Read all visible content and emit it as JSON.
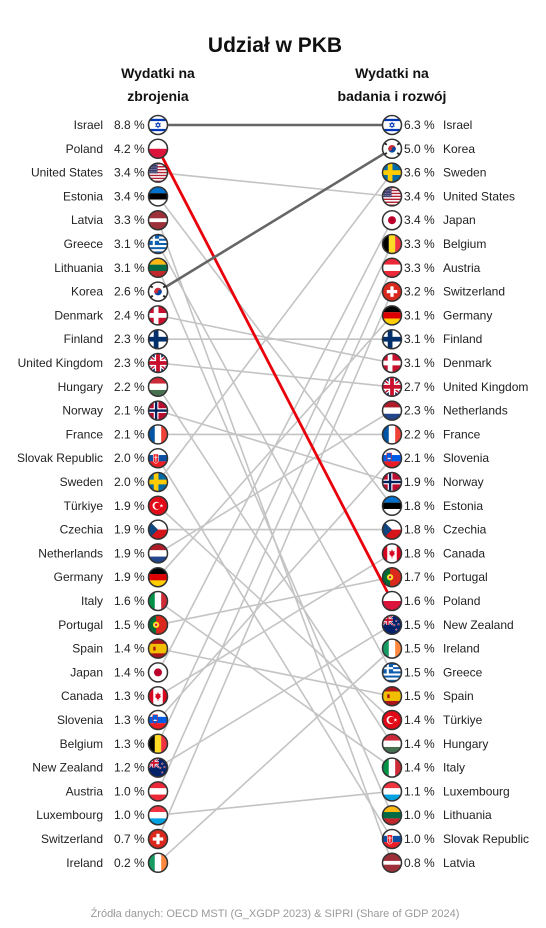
{
  "chart_data": {
    "type": "slope",
    "title": "Udział w PKB",
    "left_header": [
      "Wydatki na",
      "zbrojenia"
    ],
    "right_header": [
      "Wydatki na",
      "badania i rozwój"
    ],
    "unit": "%",
    "left": [
      {
        "country": "Israel",
        "value": 8.8,
        "label": "8.8 %"
      },
      {
        "country": "Poland",
        "value": 4.2,
        "label": "4.2 %"
      },
      {
        "country": "United States",
        "value": 3.4,
        "label": "3.4 %"
      },
      {
        "country": "Estonia",
        "value": 3.4,
        "label": "3.4 %"
      },
      {
        "country": "Latvia",
        "value": 3.3,
        "label": "3.3 %"
      },
      {
        "country": "Greece",
        "value": 3.1,
        "label": "3.1 %"
      },
      {
        "country": "Lithuania",
        "value": 3.1,
        "label": "3.1 %"
      },
      {
        "country": "Korea",
        "value": 2.6,
        "label": "2.6 %"
      },
      {
        "country": "Denmark",
        "value": 2.4,
        "label": "2.4 %"
      },
      {
        "country": "Finland",
        "value": 2.3,
        "label": "2.3 %"
      },
      {
        "country": "United Kingdom",
        "value": 2.3,
        "label": "2.3 %"
      },
      {
        "country": "Hungary",
        "value": 2.2,
        "label": "2.2 %"
      },
      {
        "country": "Norway",
        "value": 2.1,
        "label": "2.1 %"
      },
      {
        "country": "France",
        "value": 2.1,
        "label": "2.1 %"
      },
      {
        "country": "Slovak Republic",
        "value": 2.0,
        "label": "2.0 %"
      },
      {
        "country": "Sweden",
        "value": 2.0,
        "label": "2.0 %"
      },
      {
        "country": "Türkiye",
        "value": 1.9,
        "label": "1.9 %"
      },
      {
        "country": "Czechia",
        "value": 1.9,
        "label": "1.9 %"
      },
      {
        "country": "Netherlands",
        "value": 1.9,
        "label": "1.9 %"
      },
      {
        "country": "Germany",
        "value": 1.9,
        "label": "1.9 %"
      },
      {
        "country": "Italy",
        "value": 1.6,
        "label": "1.6 %"
      },
      {
        "country": "Portugal",
        "value": 1.5,
        "label": "1.5 %"
      },
      {
        "country": "Spain",
        "value": 1.4,
        "label": "1.4 %"
      },
      {
        "country": "Japan",
        "value": 1.4,
        "label": "1.4 %"
      },
      {
        "country": "Canada",
        "value": 1.3,
        "label": "1.3 %"
      },
      {
        "country": "Slovenia",
        "value": 1.3,
        "label": "1.3 %"
      },
      {
        "country": "Belgium",
        "value": 1.3,
        "label": "1.3 %"
      },
      {
        "country": "New Zealand",
        "value": 1.2,
        "label": "1.2 %"
      },
      {
        "country": "Austria",
        "value": 1.0,
        "label": "1.0 %"
      },
      {
        "country": "Luxembourg",
        "value": 1.0,
        "label": "1.0 %"
      },
      {
        "country": "Switzerland",
        "value": 0.7,
        "label": "0.7 %"
      },
      {
        "country": "Ireland",
        "value": 0.2,
        "label": "0.2 %"
      }
    ],
    "right": [
      {
        "country": "Israel",
        "value": 6.3,
        "label": "6.3 %"
      },
      {
        "country": "Korea",
        "value": 5.0,
        "label": "5.0 %"
      },
      {
        "country": "Sweden",
        "value": 3.6,
        "label": "3.6 %"
      },
      {
        "country": "United States",
        "value": 3.4,
        "label": "3.4 %"
      },
      {
        "country": "Japan",
        "value": 3.4,
        "label": "3.4 %"
      },
      {
        "country": "Belgium",
        "value": 3.3,
        "label": "3.3 %"
      },
      {
        "country": "Austria",
        "value": 3.3,
        "label": "3.3 %"
      },
      {
        "country": "Switzerland",
        "value": 3.2,
        "label": "3.2 %"
      },
      {
        "country": "Germany",
        "value": 3.1,
        "label": "3.1 %"
      },
      {
        "country": "Finland",
        "value": 3.1,
        "label": "3.1 %"
      },
      {
        "country": "Denmark",
        "value": 3.1,
        "label": "3.1 %"
      },
      {
        "country": "United Kingdom",
        "value": 2.7,
        "label": "2.7 %"
      },
      {
        "country": "Netherlands",
        "value": 2.3,
        "label": "2.3 %"
      },
      {
        "country": "France",
        "value": 2.2,
        "label": "2.2 %"
      },
      {
        "country": "Slovenia",
        "value": 2.1,
        "label": "2.1 %"
      },
      {
        "country": "Norway",
        "value": 1.9,
        "label": "1.9 %"
      },
      {
        "country": "Estonia",
        "value": 1.8,
        "label": "1.8 %"
      },
      {
        "country": "Czechia",
        "value": 1.8,
        "label": "1.8 %"
      },
      {
        "country": "Canada",
        "value": 1.8,
        "label": "1.8 %"
      },
      {
        "country": "Portugal",
        "value": 1.7,
        "label": "1.7 %"
      },
      {
        "country": "Poland",
        "value": 1.6,
        "label": "1.6 %"
      },
      {
        "country": "New Zealand",
        "value": 1.5,
        "label": "1.5 %"
      },
      {
        "country": "Ireland",
        "value": 1.5,
        "label": "1.5 %"
      },
      {
        "country": "Greece",
        "value": 1.5,
        "label": "1.5 %"
      },
      {
        "country": "Spain",
        "value": 1.5,
        "label": "1.5 %"
      },
      {
        "country": "Türkiye",
        "value": 1.4,
        "label": "1.4 %"
      },
      {
        "country": "Hungary",
        "value": 1.4,
        "label": "1.4 %"
      },
      {
        "country": "Italy",
        "value": 1.4,
        "label": "1.4 %"
      },
      {
        "country": "Luxembourg",
        "value": 1.1,
        "label": "1.1 %"
      },
      {
        "country": "Lithuania",
        "value": 1.0,
        "label": "1.0 %"
      },
      {
        "country": "Slovak Republic",
        "value": 1.0,
        "label": "1.0 %"
      },
      {
        "country": "Latvia",
        "value": 0.8,
        "label": "0.8 %"
      }
    ],
    "highlight": {
      "Poland": "#e8000b",
      "Israel": "#666666",
      "Korea": "#666666"
    },
    "default_line_color": "#c4c4c4",
    "source": "Źródła danych: OECD MSTI (G_XGDP 2023) & SIPRI (Share of GDP 2024)"
  },
  "flags": {
    "Israel": "israel-flag-icon",
    "Poland": "poland-flag-icon",
    "United States": "united-states-flag-icon",
    "Estonia": "estonia-flag-icon",
    "Latvia": "latvia-flag-icon",
    "Greece": "greece-flag-icon",
    "Lithuania": "lithuania-flag-icon",
    "Korea": "korea-flag-icon",
    "Denmark": "denmark-flag-icon",
    "Finland": "finland-flag-icon",
    "United Kingdom": "united-kingdom-flag-icon",
    "Hungary": "hungary-flag-icon",
    "Norway": "norway-flag-icon",
    "France": "france-flag-icon",
    "Slovak Republic": "slovak-republic-flag-icon",
    "Sweden": "sweden-flag-icon",
    "Türkiye": "turkiye-flag-icon",
    "Czechia": "czechia-flag-icon",
    "Netherlands": "netherlands-flag-icon",
    "Germany": "germany-flag-icon",
    "Italy": "italy-flag-icon",
    "Portugal": "portugal-flag-icon",
    "Spain": "spain-flag-icon",
    "Japan": "japan-flag-icon",
    "Canada": "canada-flag-icon",
    "Slovenia": "slovenia-flag-icon",
    "Belgium": "belgium-flag-icon",
    "New Zealand": "new-zealand-flag-icon",
    "Austria": "austria-flag-icon",
    "Luxembourg": "luxembourg-flag-icon",
    "Switzerland": "switzerland-flag-icon",
    "Ireland": "ireland-flag-icon"
  }
}
